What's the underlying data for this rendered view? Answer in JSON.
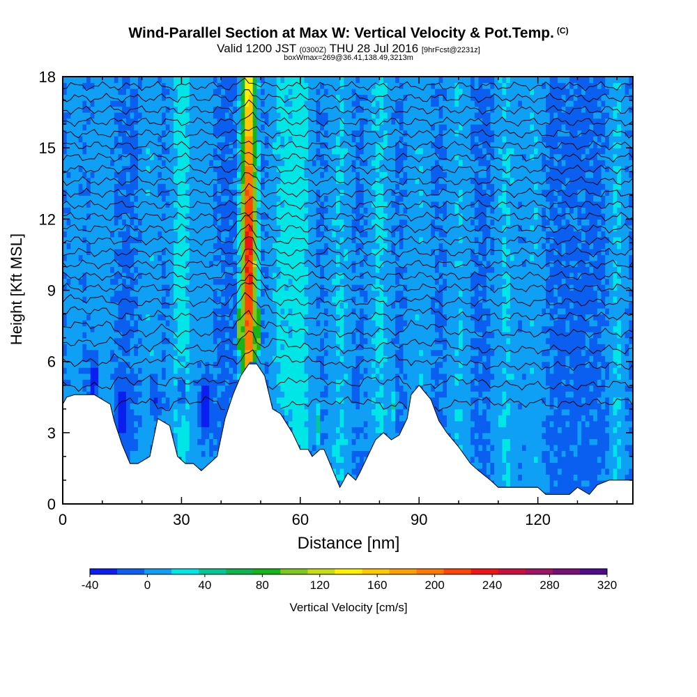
{
  "title": {
    "main": "Wind-Parallel Section at Max W: Vertical Velocity & Pot.Temp.",
    "copyright": "(C)",
    "valid_prefix": "Valid 1200 JST",
    "valid_utc": "(0300Z)",
    "valid_date": "THU 28 Jul 2016",
    "forecast": "[9hrFcst@2231z]",
    "box_info": "boxWmax=269@36.41,138.49,3213m"
  },
  "chart_data": {
    "type": "heatmap",
    "xlabel": "Distance [nm]",
    "ylabel": "Height [Kft MSL]",
    "xlim": [
      0,
      144
    ],
    "ylim": [
      0,
      18
    ],
    "x_ticks": [
      0,
      30,
      60,
      90,
      120
    ],
    "y_ticks": [
      0,
      3,
      6,
      9,
      12,
      15,
      18
    ],
    "grid": false,
    "colorbar": {
      "label": "Vertical Velocity [cm/s]",
      "min": -40,
      "max": 320,
      "step": 20,
      "tick_labels": [
        -40,
        0,
        40,
        80,
        120,
        160,
        200,
        240,
        280,
        320
      ],
      "colors": [
        "#0a1ef0",
        "#0a5ff0",
        "#0fa0f5",
        "#00e6e6",
        "#00c896",
        "#0fb450",
        "#17b417",
        "#7dc81e",
        "#c8dc14",
        "#fff000",
        "#ffc800",
        "#ffa000",
        "#ff7800",
        "#ff4600",
        "#f01414",
        "#c8103c",
        "#a01464",
        "#780f78",
        "#500a8c"
      ]
    },
    "max_updraft": {
      "x": 47,
      "value_cm_s": 269,
      "height_kft": 10.5
    },
    "terrain": {
      "x": [
        0,
        1,
        3,
        8,
        10,
        12,
        13,
        15,
        17,
        19,
        22,
        24,
        27,
        29,
        31,
        33,
        35,
        37,
        39,
        41,
        43,
        45,
        47,
        49,
        51,
        53,
        55,
        58,
        60,
        62,
        63,
        65,
        66,
        68,
        70,
        71,
        72,
        74,
        75,
        77,
        79,
        81,
        83,
        85,
        87,
        88,
        90,
        91,
        93,
        95,
        97,
        100,
        103,
        105,
        108,
        110,
        113,
        115,
        118,
        120,
        122,
        125,
        128,
        130,
        133,
        135,
        138,
        141,
        144
      ],
      "y": [
        4.2,
        4.5,
        4.6,
        4.6,
        4.4,
        4.2,
        3.5,
        2.5,
        1.7,
        1.7,
        2.0,
        3.6,
        3.3,
        2.0,
        1.7,
        1.7,
        1.4,
        1.7,
        2.0,
        3.6,
        4.6,
        5.4,
        5.9,
        5.9,
        5.4,
        4.0,
        3.8,
        3.0,
        2.3,
        2.3,
        2.0,
        2.3,
        2.3,
        1.5,
        0.7,
        1.0,
        1.3,
        1.0,
        1.3,
        2.0,
        2.7,
        3.0,
        2.7,
        2.9,
        3.6,
        4.6,
        5.0,
        4.8,
        4.4,
        3.5,
        3.0,
        2.4,
        1.7,
        1.4,
        1.0,
        0.7,
        0.7,
        0.7,
        0.7,
        0.7,
        0.4,
        0.4,
        0.4,
        0.7,
        0.4,
        0.8,
        1.0,
        1.0,
        1.0
      ]
    },
    "theta_isentrope_heights": [
      4.0,
      4.9,
      5.8,
      6.5,
      7.2,
      7.9,
      8.5,
      9.1,
      9.6,
      10.1,
      10.6,
      11.1,
      11.6,
      12.1,
      12.6,
      13.1,
      13.6,
      14.1,
      14.6,
      15.1,
      15.6,
      16.1,
      16.6,
      17.1,
      17.6
    ]
  }
}
